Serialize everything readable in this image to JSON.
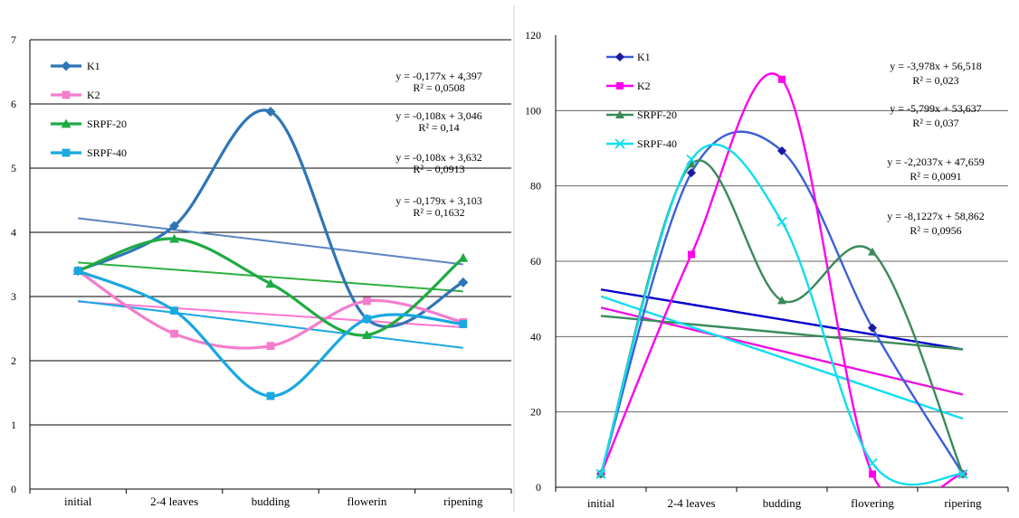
{
  "chart_data": [
    {
      "type": "line",
      "categories": [
        "initial",
        "2-4 leaves",
        "budding",
        "flowerin",
        "ripening"
      ],
      "ylim": [
        0,
        7
      ],
      "yticks": [
        "0",
        "1",
        "2",
        "3",
        "4",
        "5",
        "6",
        "7"
      ],
      "grid": true,
      "legend_position": "top-left",
      "series": [
        {
          "name": "K1",
          "values": [
            3.4,
            4.1,
            5.88,
            2.65,
            3.22
          ],
          "color": "#2e75b6",
          "marker": "diamond",
          "trend": {
            "points": [
              4.22,
              3.5
            ],
            "color": "#5b84c0"
          }
        },
        {
          "name": "K2",
          "values": [
            3.4,
            2.42,
            2.23,
            2.93,
            2.6
          ],
          "color": "#f47dcd",
          "marker": "square",
          "trend": {
            "points": [
              2.92,
              2.52
            ],
            "color": "#ff77d0"
          }
        },
        {
          "name": "SRPF-20",
          "values": [
            3.4,
            3.9,
            3.2,
            2.4,
            3.6
          ],
          "color": "#1fab43",
          "marker": "triangle",
          "trend": {
            "points": [
              3.53,
              3.08
            ],
            "color": "#2fb040"
          }
        },
        {
          "name": "SRPF-40",
          "values": [
            3.4,
            2.78,
            1.45,
            2.65,
            2.57
          ],
          "color": "#1aa8e0",
          "marker": "square",
          "trend": {
            "points": [
              2.93,
              2.2
            ],
            "color": "#1aa8e0"
          }
        }
      ],
      "equations": [
        {
          "line1": "y = -0,177x + 4,397",
          "line2": "R² = 0,0508"
        },
        {
          "line1": "y = -0,108x + 3,046",
          "line2": "R² = 0,14"
        },
        {
          "line1": "y = -0,108x + 3,632",
          "line2": "R² = 0,0913"
        },
        {
          "line1": "y = -0,179x + 3,103",
          "line2": "R² = 0,1632"
        }
      ]
    },
    {
      "type": "line",
      "categories": [
        "initial",
        "2-4 leaves",
        "budding",
        "flovering",
        "ripering"
      ],
      "ylim": [
        0,
        120
      ],
      "yticks": [
        "0",
        "20",
        "40",
        "60",
        "80",
        "100",
        "120"
      ],
      "grid": true,
      "legend_position": "top-left",
      "series": [
        {
          "name": "K1",
          "values": [
            3.5,
            83.5,
            89.3,
            42.3,
            3.5
          ],
          "color": "#3c5fd8",
          "marker": "diamond",
          "marker_color": "#1a1aa0",
          "trend": {
            "points": [
              52.5,
              36.6
            ],
            "color": "#0000cc"
          }
        },
        {
          "name": "K2",
          "values": [
            3.5,
            61.8,
            108.3,
            3.5,
            3.5
          ],
          "color": "#ff00ee",
          "marker": "square",
          "trend": {
            "points": [
              47.7,
              24.6
            ],
            "color": "#ee11dd"
          }
        },
        {
          "name": "SRPF-20",
          "values": [
            3.5,
            85.8,
            49.6,
            62.5,
            3.5
          ],
          "color": "#3a8a5a",
          "marker": "triangle",
          "trend": {
            "points": [
              45.5,
              36.6
            ],
            "color": "#3a8a5a"
          }
        },
        {
          "name": "SRPF-40",
          "values": [
            3.5,
            87.0,
            70.5,
            6.4,
            3.5
          ],
          "color": "#11ddee",
          "marker": "x",
          "trend": {
            "points": [
              50.7,
              18.2
            ],
            "color": "#11ddee"
          }
        }
      ],
      "equations": [
        {
          "line1": "y = -3,978x + 56,518",
          "line2": "R² = 0,023"
        },
        {
          "line1": "y = -5,799x + 53,637",
          "line2": "R² = 0,037"
        },
        {
          "line1": "y = -2,2037x + 47,659",
          "line2": "R² = 0,0091"
        },
        {
          "line1": "y = -8,1227x + 58,862",
          "line2": "R² = 0,0956"
        }
      ]
    }
  ]
}
